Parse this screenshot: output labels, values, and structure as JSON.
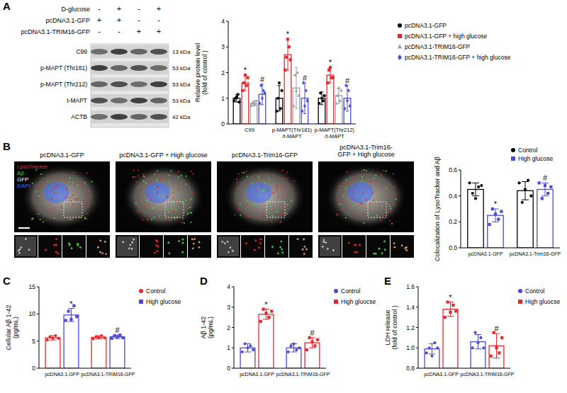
{
  "blot": {
    "panel_label": "A",
    "conditions": [
      {
        "label": "D-glucose",
        "signs": [
          "-",
          "+",
          "-",
          "+"
        ]
      },
      {
        "label": "pcDNA3.1-GFP",
        "signs": [
          "+",
          "+",
          "-",
          "-"
        ]
      },
      {
        "label": "pcDNA3.1-TRIM16-GFP",
        "signs": [
          "-",
          "-",
          "+",
          "+"
        ]
      }
    ],
    "bands": [
      {
        "label": "C99",
        "size": "13 kDa"
      },
      {
        "label": "p-MAPT (Thr181)",
        "size": "53 kDa"
      },
      {
        "label": "p-MAPT (Thr212)",
        "size": "53 kDa"
      },
      {
        "label": "t-MAPT",
        "size": "53 kDa"
      },
      {
        "label": "ACTB",
        "size": "42 kDa"
      }
    ]
  },
  "micrographs": {
    "panel_label": "B",
    "titles": [
      "pcDNA3.1-GFP",
      "pcDNA3.1-GFP + High glucose",
      "pcDNA3.1-Trim16-GFP",
      "pcDNA3.1-Trim16-\nGFP + High glucose"
    ],
    "channels": [
      {
        "label": "LysoTracker",
        "color": "#e8262b"
      },
      {
        "label": "Aβ",
        "color": "#3fd13f"
      },
      {
        "label": "GFP",
        "color": "#ffffff"
      },
      {
        "label": "DAPI",
        "color": "#3a6bff"
      }
    ]
  },
  "chart_data": [
    {
      "type": "bar",
      "y_label": "Relative protein level\n(fold of control )",
      "categories": [
        "C99",
        "p-MAPT(Thr181)\n/t-MAPT",
        "p-MAPT(Thr212)\n/t-MAPT"
      ],
      "ylim": [
        0,
        4
      ],
      "yticks": [
        0,
        1,
        2,
        3,
        4
      ],
      "legend": "right",
      "series": [
        {
          "name": "pcDNA3.1-GFP",
          "color": "#000000",
          "marker": "circle",
          "values": [
            1.0,
            1.0,
            1.0
          ],
          "errors": [
            0.15,
            0.5,
            0.25
          ],
          "points": [
            [
              0.9,
              1.0,
              1.05,
              1.15,
              0.85
            ],
            [
              0.5,
              1.0,
              1.6,
              0.6,
              1.3
            ],
            [
              0.8,
              1.2,
              1.0,
              0.9,
              1.1
            ]
          ]
        },
        {
          "name": "pcDNA3.1-GFP + high glucose",
          "color": "#e8262b",
          "marker": "square",
          "values": [
            1.6,
            2.7,
            1.9
          ],
          "errors": [
            0.3,
            0.6,
            0.3
          ],
          "points": [
            [
              1.3,
              1.6,
              1.9,
              1.5,
              1.8
            ],
            [
              2.1,
              2.6,
              3.3,
              3.0,
              2.5
            ],
            [
              1.6,
              2.1,
              2.2,
              1.8,
              1.8
            ]
          ],
          "significance": [
            "*",
            "*",
            "*"
          ]
        },
        {
          "name": "pcDNA3.1-TRIM16-GFP",
          "color": "#9e9e9e",
          "marker": "triangle",
          "values": [
            0.8,
            1.4,
            1.1
          ],
          "errors": [
            0.1,
            0.8,
            0.3
          ],
          "points": [
            [
              0.7,
              0.8,
              0.85,
              0.75,
              0.9
            ],
            [
              0.7,
              1.9,
              1.3,
              2.0,
              1.1
            ],
            [
              0.8,
              1.1,
              1.4,
              0.9,
              1.3
            ]
          ]
        },
        {
          "name": "pcDNA3.1-TRIM16-GFP + high glucose",
          "color": "#4a4ad6",
          "marker": "diamond",
          "values": [
            1.15,
            1.0,
            1.0
          ],
          "errors": [
            0.4,
            0.6,
            0.5
          ],
          "points": [
            [
              0.8,
              1.5,
              1.0,
              1.3,
              1.2
            ],
            [
              0.5,
              1.6,
              0.7,
              1.3,
              0.9
            ],
            [
              0.6,
              1.5,
              0.9,
              1.3,
              0.7
            ]
          ],
          "significance": [
            "#",
            "#",
            "#"
          ]
        }
      ]
    },
    {
      "type": "bar",
      "y_label": "Colocalization of LysoTracker and Aβ",
      "categories": [
        "pcDNA3.1-GFP",
        "pcDNA3.1-Trim16-GFP"
      ],
      "ylim": [
        0,
        0.6
      ],
      "yticks": [
        {
          "value": 0,
          "label": "0.0"
        },
        0.2,
        0.4,
        0.6
      ],
      "legend": "top",
      "series": [
        {
          "name": "Control",
          "color": "#000000",
          "marker": "circle",
          "values": [
            0.45,
            0.44
          ],
          "errors": [
            0.05,
            0.07
          ],
          "points": [
            [
              0.5,
              0.42,
              0.38,
              0.47,
              0.48
            ],
            [
              0.5,
              0.35,
              0.45,
              0.52,
              0.4
            ]
          ]
        },
        {
          "name": "High glucose",
          "color": "#4a4ad6",
          "marker": "square",
          "values": [
            0.25,
            0.45
          ],
          "errors": [
            0.05,
            0.05
          ],
          "points": [
            [
              0.18,
              0.3,
              0.26,
              0.22,
              0.28
            ],
            [
              0.5,
              0.38,
              0.48,
              0.42,
              0.47
            ]
          ],
          "significance": [
            "*",
            "#"
          ]
        }
      ]
    },
    {
      "type": "bar",
      "panel_label": "C",
      "y_label": "Cellular Aβ 1-42\n(pg/mL)",
      "categories": [
        "pcDNA3.1-GFP",
        "pcDNA3.1-TRIM16-GFP"
      ],
      "ylim": [
        0,
        15
      ],
      "yticks": [
        0,
        5,
        10,
        15
      ],
      "legend": "right",
      "series": [
        {
          "name": "Control",
          "color": "#e8262b",
          "marker": "circle",
          "values": [
            5.6,
            5.7
          ],
          "errors": [
            0.4,
            0.3
          ],
          "points": [
            [
              5.2,
              5.8,
              5.5,
              6.0,
              5.5
            ],
            [
              5.4,
              5.8,
              5.7,
              6.0,
              5.6
            ]
          ]
        },
        {
          "name": "High glucose",
          "color": "#4a4ad6",
          "marker": "square",
          "values": [
            9.8,
            5.8
          ],
          "errors": [
            1.2,
            0.3
          ],
          "points": [
            [
              8.8,
              10.5,
              9.0,
              11.5,
              9.5
            ],
            [
              5.5,
              6.0,
              5.7,
              6.1,
              5.6
            ]
          ],
          "significance": [
            "*",
            "#"
          ]
        }
      ]
    },
    {
      "type": "bar",
      "panel_label": "D",
      "y_label": "Aβ 1-42\n(pg/mL)",
      "categories": [
        "pcDNA3.1-GFP",
        "pcDNA3.1-TRIM16-GFP"
      ],
      "ylim": [
        0,
        4
      ],
      "yticks": [
        0,
        1,
        2,
        3,
        4
      ],
      "legend": "right",
      "series": [
        {
          "name": "Control",
          "color": "#4a4ad6",
          "marker": "circle",
          "values": [
            1.0,
            1.0
          ],
          "errors": [
            0.2,
            0.2
          ],
          "points": [
            [
              0.8,
              1.2,
              1.0,
              1.1,
              0.9
            ],
            [
              0.8,
              1.1,
              1.2,
              0.9,
              1.0
            ]
          ]
        },
        {
          "name": "High gluocse",
          "color": "#e8262b",
          "marker": "square",
          "values": [
            2.65,
            1.25
          ],
          "errors": [
            0.25,
            0.25
          ],
          "points": [
            [
              2.3,
              2.9,
              2.7,
              2.5,
              2.8
            ],
            [
              0.9,
              1.5,
              1.3,
              1.1,
              1.4
            ]
          ],
          "significance": [
            "*",
            "#"
          ]
        }
      ]
    },
    {
      "type": "bar",
      "panel_label": "E",
      "y_label": "LDH release\n(fold of control )",
      "categories": [
        "pcDNA3.1-GFP",
        "pcDNA3.1-TRIM16-GFP"
      ],
      "ylim": [
        0.8,
        1.6
      ],
      "yticks": [
        0.8,
        {
          "value": 1,
          "label": "1.0"
        },
        1.2,
        1.4,
        1.6
      ],
      "legend": "right",
      "series": [
        {
          "name": "Control",
          "color": "#4a4ad6",
          "marker": "circle",
          "values": [
            0.99,
            1.06
          ],
          "errors": [
            0.05,
            0.07
          ],
          "points": [
            [
              0.95,
              1.0,
              0.92,
              1.05,
              1.0
            ],
            [
              1.0,
              1.15,
              1.05,
              1.1,
              1.0
            ]
          ]
        },
        {
          "name": "High gluocse",
          "color": "#e8262b",
          "marker": "square",
          "values": [
            1.38,
            1.02
          ],
          "errors": [
            0.07,
            0.12
          ],
          "points": [
            [
              1.3,
              1.45,
              1.35,
              1.42,
              1.36
            ],
            [
              0.92,
              1.15,
              1.0,
              0.95,
              1.1
            ]
          ],
          "significance": [
            "*",
            "#"
          ]
        }
      ]
    }
  ]
}
